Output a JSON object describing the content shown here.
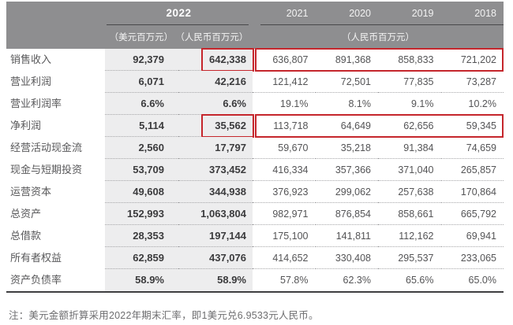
{
  "table": {
    "header": {
      "year_2022": "2022",
      "units_2022": "（美元百万元） （人民币百万元）",
      "years": [
        "2021",
        "2020",
        "2019",
        "2018"
      ],
      "years_unit": "（人民币百万元）"
    },
    "rows": [
      {
        "label": "销售收入",
        "usd": "92,379",
        "rmb": "642,338",
        "values": [
          "636,807",
          "891,368",
          "858,833",
          "721,202"
        ],
        "highlight": true
      },
      {
        "label": "营业利润",
        "usd": "6,071",
        "rmb": "42,216",
        "values": [
          "121,412",
          "72,501",
          "77,835",
          "73,287"
        ],
        "highlight": false
      },
      {
        "label": "营业利润率",
        "usd": "6.6%",
        "rmb": "6.6%",
        "values": [
          "19.1%",
          "8.1%",
          "9.1%",
          "10.2%"
        ],
        "highlight": false
      },
      {
        "label": "净利润",
        "usd": "5,114",
        "rmb": "35,562",
        "values": [
          "113,718",
          "64,649",
          "62,656",
          "59,345"
        ],
        "highlight": true
      },
      {
        "label": "经营活动现金流",
        "usd": "2,560",
        "rmb": "17,797",
        "values": [
          "59,670",
          "35,218",
          "91,384",
          "74,659"
        ],
        "highlight": false
      },
      {
        "label": "现金与短期投资",
        "usd": "53,709",
        "rmb": "373,452",
        "values": [
          "416,334",
          "357,366",
          "371,040",
          "265,857"
        ],
        "highlight": false
      },
      {
        "label": "运营资本",
        "usd": "49,608",
        "rmb": "344,938",
        "values": [
          "376,923",
          "299,062",
          "257,638",
          "170,864"
        ],
        "highlight": false
      },
      {
        "label": "总资产",
        "usd": "152,993",
        "rmb": "1,063,804",
        "values": [
          "982,971",
          "876,854",
          "858,661",
          "665,792"
        ],
        "highlight": false
      },
      {
        "label": "总借款",
        "usd": "28,353",
        "rmb": "197,144",
        "values": [
          "175,100",
          "141,811",
          "112,162",
          "69,941"
        ],
        "highlight": false
      },
      {
        "label": "所有者权益",
        "usd": "62,859",
        "rmb": "437,076",
        "values": [
          "414,652",
          "330,408",
          "295,537",
          "233,065"
        ],
        "highlight": false
      },
      {
        "label": "资产负债率",
        "usd": "58.9%",
        "rmb": "58.9%",
        "values": [
          "57.8%",
          "62.3%",
          "65.6%",
          "65.0%"
        ],
        "highlight": false
      }
    ]
  },
  "note": "注：美元金额折算采用2022年期末汇率，即1美元兑6.9533元人民币。",
  "colors": {
    "header_bg": "#8e8e90",
    "col_2022_bg": "#ededee",
    "highlight_red": "#c5262c",
    "table_bottom_border": "#3e3e40"
  }
}
